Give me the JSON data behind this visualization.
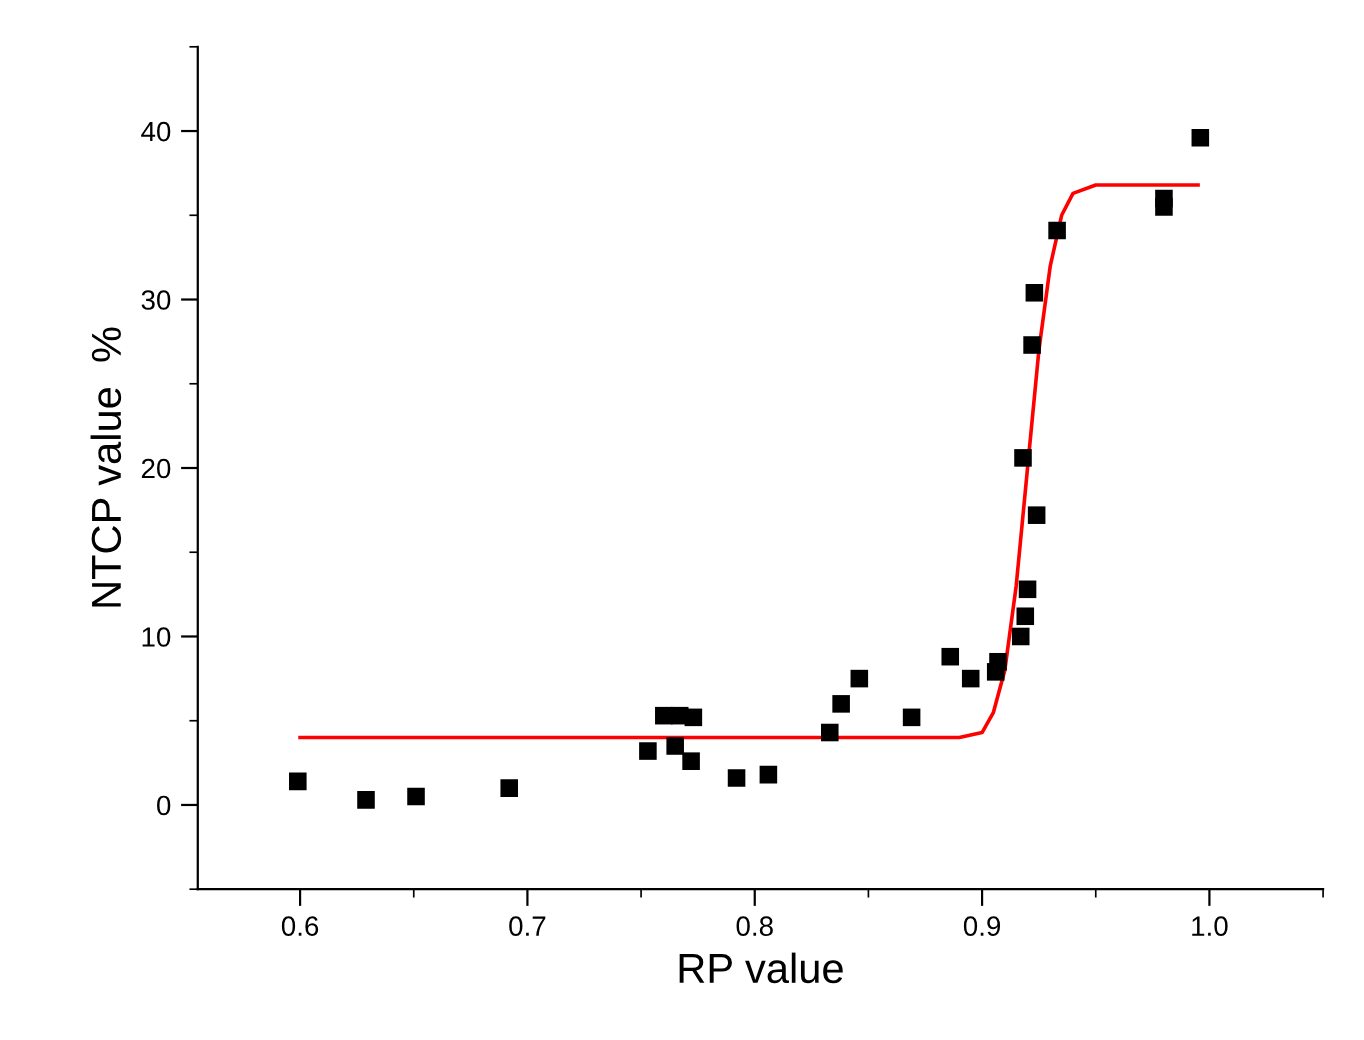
{
  "chart_data": {
    "type": "scatter",
    "xlabel": "RP value",
    "ylabel": "NTCP value  %",
    "xlim": [
      0.555,
      1.05
    ],
    "ylim": [
      -5,
      45
    ],
    "xticks": [
      0.6,
      0.7,
      0.8,
      0.9,
      {
        "value": 1.0,
        "label": "1.0"
      }
    ],
    "yticks": [
      0,
      10,
      20,
      30,
      40
    ],
    "grid": false,
    "legend": false,
    "series": [
      {
        "marker": "square",
        "color": "#000000",
        "x": [
          0.599,
          0.629,
          0.651,
          0.692,
          0.753,
          0.76,
          0.765,
          0.767,
          0.773,
          0.772,
          0.792,
          0.806,
          0.833,
          0.838,
          0.846,
          0.869,
          0.886,
          0.895,
          0.906,
          0.907,
          0.917,
          0.919,
          0.92,
          0.918,
          0.924,
          0.922,
          0.923,
          0.933,
          0.98,
          0.98,
          0.996
        ],
        "values": [
          1.4,
          0.3,
          0.5,
          1.0,
          3.2,
          5.3,
          3.5,
          5.3,
          5.2,
          2.6,
          1.6,
          1.8,
          4.3,
          6.0,
          7.5,
          5.2,
          8.8,
          7.5,
          7.9,
          8.5,
          10.0,
          11.2,
          12.8,
          20.6,
          17.2,
          27.3,
          30.4,
          34.1,
          35.5,
          36.0,
          39.6
        ]
      },
      {
        "type": "line",
        "marker": "none",
        "color": "#ff0000",
        "line_style": "solid",
        "x": [
          0.6,
          0.89,
          0.9,
          0.905,
          0.91,
          0.915,
          0.92,
          0.925,
          0.93,
          0.935,
          0.94,
          0.95,
          0.995
        ],
        "values": [
          4.0,
          4.0,
          4.3,
          5.5,
          8.0,
          13.0,
          20.0,
          27.0,
          32.0,
          35.0,
          36.3,
          36.8,
          36.8
        ]
      }
    ]
  }
}
